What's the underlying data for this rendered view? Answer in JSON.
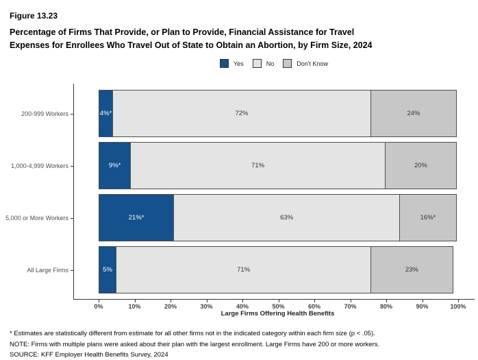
{
  "header": {
    "figure_number": "Figure 13.23",
    "title_lines": [
      "Percentage of Firms That Provide, or Plan to Provide, Financial Assistance for Travel",
      "Expenses for Enrollees Who Travel Out of State to Obtain an Abortion, by Firm Size, 2024"
    ]
  },
  "chart_data": {
    "type": "bar",
    "orientation": "horizontal_stacked",
    "title": "Percentage of Firms That Provide, or Plan to Provide, Financial Assistance for Travel Expenses for Enrollees Who Travel Out of State to Obtain an Abortion, by Firm Size, 2024",
    "categories": [
      "200-999 Workers",
      "1,000-4,999 Workers",
      "5,000 or More Workers",
      "All Large Firms"
    ],
    "series": [
      {
        "name": "Yes",
        "color": "#15518C",
        "label_color": "#ffffff",
        "values": [
          4,
          9,
          21,
          5
        ],
        "labels": [
          "4%*",
          "9%*",
          "21%*",
          "5%"
        ]
      },
      {
        "name": "No",
        "color": "#E4E4E4",
        "label_color": "#333333",
        "values": [
          72,
          71,
          63,
          71
        ],
        "labels": [
          "72%",
          "71%",
          "63%",
          "71%"
        ]
      },
      {
        "name": "Don't Know",
        "color": "#C7C7C7",
        "label_color": "#333333",
        "values": [
          24,
          20,
          16,
          23
        ],
        "labels": [
          "24%",
          "20%",
          "16%*",
          "23%"
        ]
      }
    ],
    "xlabel": "Large Firms Offering Health Benefits",
    "xlim": [
      0,
      100
    ],
    "xticks": [
      "0%",
      "10%",
      "20%",
      "30%",
      "40%",
      "50%",
      "60%",
      "70%",
      "80%",
      "90%",
      "100%"
    ],
    "legend_position": "top-center",
    "grid": false,
    "colors": {
      "yes": "#15518C",
      "no": "#E4E4E4",
      "dont_know": "#C7C7C7",
      "segment_border": "#4D4D4D",
      "axis": "#333333"
    }
  },
  "footnotes": [
    "* Estimates are statistically different from estimate for all other firms not in the indicated category within each firm size (p < .05).",
    "NOTE: Firms with multiple plans were asked about their plan with the largest enrollment.  Large Firms have 200 or more workers.",
    "SOURCE: KFF Employer Health Benefits Survey, 2024"
  ]
}
